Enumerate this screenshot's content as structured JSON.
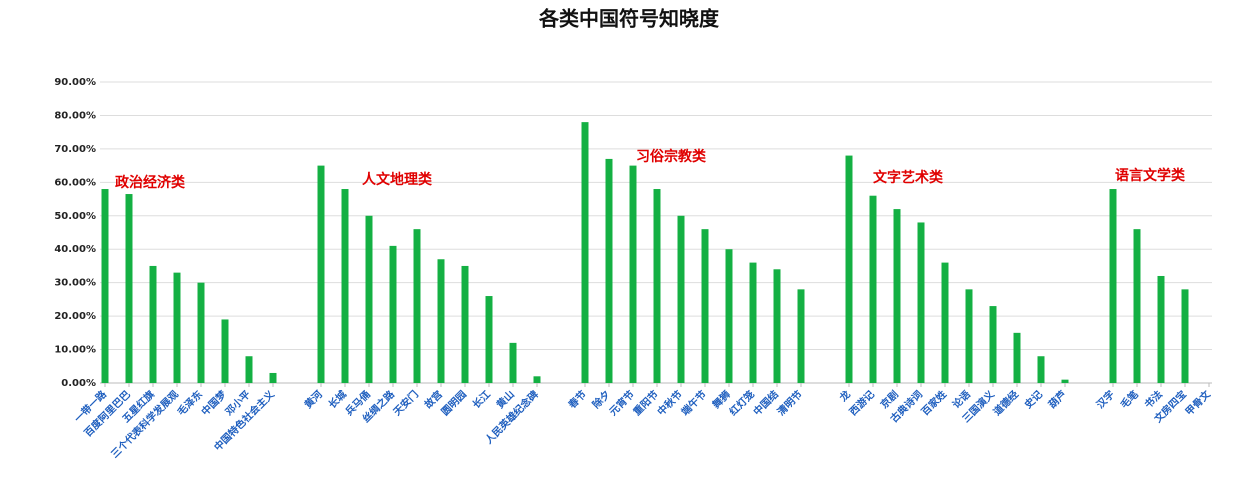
{
  "chart_data": {
    "type": "bar",
    "title": "各类中国符号知晓度",
    "categories": [
      "一带一路",
      "百度阿里巴巴",
      "五星红旗",
      "三个代表科学发展观",
      "毛泽东",
      "中国梦",
      "邓小平",
      "中国特色社会主义",
      null,
      "黄河",
      "长城",
      "兵马俑",
      "丝绸之路",
      "天安门",
      "故宫",
      "圆明园",
      "长江",
      "黄山",
      "人民英雄纪念碑",
      null,
      "春节",
      "除夕",
      "元宵节",
      "重阳节",
      "中秋节",
      "端午节",
      "舞狮",
      "红灯笼",
      "中国结",
      "清明节",
      null,
      "龙",
      "西游记",
      "京剧",
      "古典诗词",
      "百家姓",
      "论语",
      "三国演义",
      "道德经",
      "史记",
      "葫芦",
      null,
      "汉字",
      "毛笔",
      "书法",
      "文房四宝",
      "甲骨文"
    ],
    "values": [
      58,
      56.5,
      35,
      33,
      30,
      19,
      8,
      3,
      null,
      65,
      58,
      50,
      41,
      46,
      37,
      35,
      26,
      12,
      2,
      null,
      78,
      67,
      65,
      58,
      50,
      46,
      40,
      36,
      34,
      28,
      null,
      68,
      56,
      52,
      48,
      36,
      28,
      23,
      15,
      8,
      1,
      null,
      58,
      46,
      32,
      28,
      0
    ],
    "color": "#14b043",
    "ylim": [
      0,
      90
    ],
    "yticks": [
      {
        "value": 0,
        "label": "0.00%"
      },
      {
        "value": 10,
        "label": "10.00%"
      },
      {
        "value": 20,
        "label": "20.00%"
      },
      {
        "value": 30,
        "label": "30.00%"
      },
      {
        "value": 40,
        "label": "40.00%"
      },
      {
        "value": 50,
        "label": "50.00%"
      },
      {
        "value": 60,
        "label": "60.00%"
      },
      {
        "value": 70,
        "label": "70.00%"
      },
      {
        "value": 80,
        "label": "80.00%"
      },
      {
        "value": 90,
        "label": "90.00%"
      }
    ],
    "grid": true,
    "annotations": [
      "政治经济类",
      "人文地理类",
      "习俗宗教类",
      "文字艺术类",
      "语言文学类"
    ]
  }
}
